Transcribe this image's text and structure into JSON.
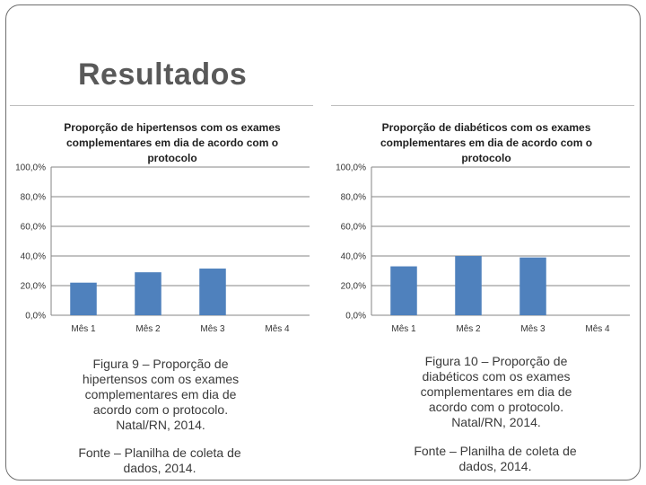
{
  "slide": {
    "title": "Resultados"
  },
  "left": {
    "caption": "Figura 9 – Proporção de hipertensos com os exames complementares em dia de acordo com o protocolo. Natal/RN, 2014.",
    "fonte": "Fonte – Planilha de coleta de dados, 2014."
  },
  "right": {
    "caption": "Figura 10 – Proporção de diabéticos com os exames complementares em dia de acordo com o protocolo. Natal/RN, 2014.",
    "fonte": "Fonte – Planilha de coleta de dados, 2014."
  },
  "colors": {
    "bar": "#4f81bd",
    "grid": "#868686",
    "title_text": "#595959"
  },
  "chart_data": [
    {
      "type": "bar",
      "title": "Proporção de hipertensos com os exames complementares em dia de acordo com o protocolo",
      "categories": [
        "Mês 1",
        "Mês 2",
        "Mês 3",
        "Mês 4"
      ],
      "values": [
        22,
        29,
        31.5,
        0
      ],
      "ylim": [
        0,
        100
      ],
      "yticks": [
        "0,0%",
        "20,0%",
        "40,0%",
        "60,0%",
        "80,0%",
        "100,0%"
      ],
      "grid": true,
      "legend": "none"
    },
    {
      "type": "bar",
      "title": "Proporção de diabéticos com os exames complementares em dia de acordo com o protocolo",
      "categories": [
        "Mês 1",
        "Mês 2",
        "Mês 3",
        "Mês 4"
      ],
      "values": [
        33,
        40,
        39,
        0
      ],
      "ylim": [
        0,
        100
      ],
      "yticks": [
        "0,0%",
        "20,0%",
        "40,0%",
        "60,0%",
        "80,0%",
        "100,0%"
      ],
      "grid": true,
      "legend": "none"
    }
  ]
}
